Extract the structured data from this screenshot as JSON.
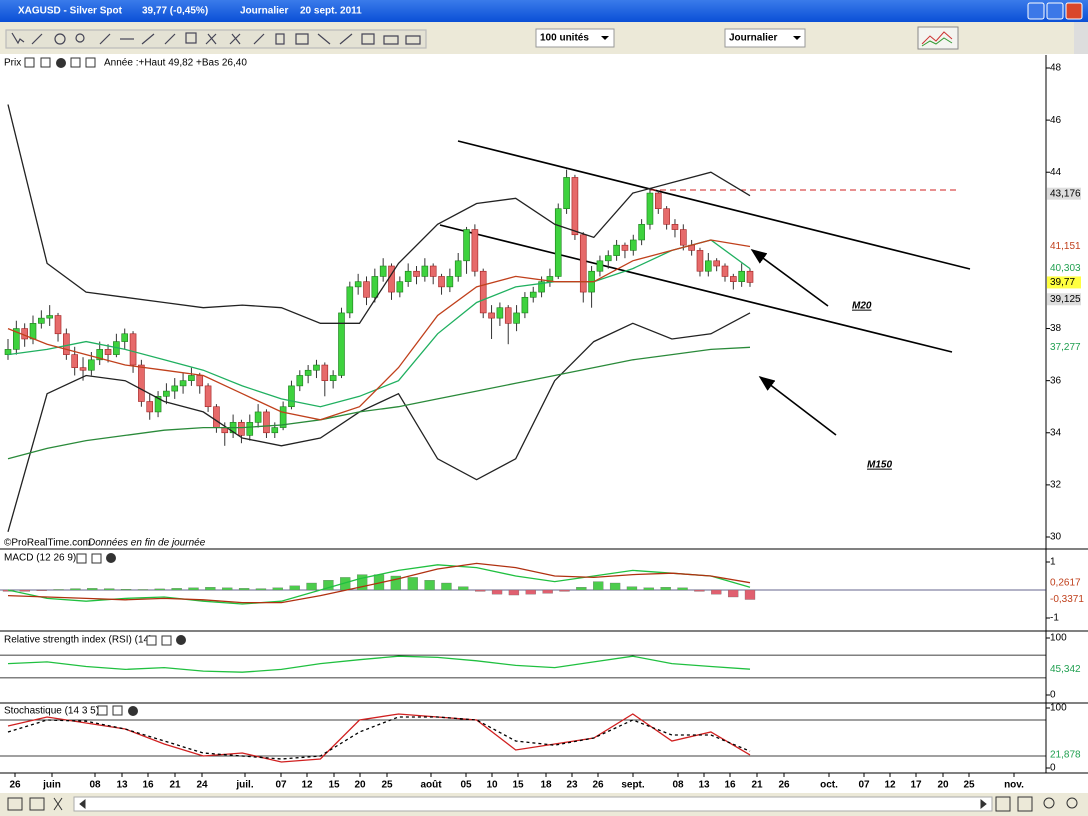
{
  "window": {
    "title": "XAGUSD - Silver Spot",
    "price": "39,77 (-0,45%)",
    "period": "Journalier",
    "date": "20 sept. 2011"
  },
  "toolbar": {
    "units": "100 unités",
    "period": "Journalier"
  },
  "price_panel": {
    "label": "Prix",
    "range_note": "Année :+Haut 49,82 +Bas 26,40",
    "copyright": "©ProRealTime.com",
    "note": "Données en fin de journée",
    "ylim": [
      30,
      48
    ],
    "yticks": [
      48,
      46,
      44,
      38,
      36,
      34,
      32,
      30
    ],
    "candles": [
      [
        37.0,
        37.6,
        36.8,
        37.2
      ],
      [
        37.2,
        38.3,
        37.0,
        38.0
      ],
      [
        38.0,
        38.2,
        37.3,
        37.6
      ],
      [
        37.6,
        38.5,
        37.4,
        38.2
      ],
      [
        38.2,
        38.7,
        38.0,
        38.4
      ],
      [
        38.4,
        38.9,
        38.1,
        38.5
      ],
      [
        38.5,
        38.6,
        37.5,
        37.8
      ],
      [
        37.8,
        38.0,
        36.8,
        37.0
      ],
      [
        37.0,
        37.3,
        36.2,
        36.5
      ],
      [
        36.5,
        36.9,
        36.0,
        36.4
      ],
      [
        36.4,
        37.1,
        36.2,
        36.8
      ],
      [
        36.8,
        37.5,
        36.6,
        37.2
      ],
      [
        37.2,
        37.4,
        36.7,
        37.0
      ],
      [
        37.0,
        37.8,
        36.9,
        37.5
      ],
      [
        37.5,
        38.0,
        37.2,
        37.8
      ],
      [
        37.8,
        37.9,
        36.3,
        36.6
      ],
      [
        36.6,
        36.8,
        35.0,
        35.2
      ],
      [
        35.2,
        35.5,
        34.5,
        34.8
      ],
      [
        34.8,
        35.6,
        34.6,
        35.4
      ],
      [
        35.4,
        35.9,
        35.1,
        35.6
      ],
      [
        35.6,
        36.1,
        35.3,
        35.8
      ],
      [
        35.8,
        36.3,
        35.5,
        36.0
      ],
      [
        36.0,
        36.5,
        35.8,
        36.2
      ],
      [
        36.2,
        36.3,
        35.5,
        35.8
      ],
      [
        35.8,
        35.9,
        34.8,
        35.0
      ],
      [
        35.0,
        35.1,
        34.0,
        34.2
      ],
      [
        34.2,
        34.4,
        33.5,
        34.0
      ],
      [
        34.0,
        34.7,
        33.8,
        34.4
      ],
      [
        34.4,
        34.5,
        33.6,
        33.9
      ],
      [
        33.9,
        34.7,
        33.7,
        34.4
      ],
      [
        34.4,
        35.1,
        34.2,
        34.8
      ],
      [
        34.8,
        34.9,
        33.8,
        34.0
      ],
      [
        34.0,
        34.4,
        33.8,
        34.2
      ],
      [
        34.2,
        35.2,
        34.1,
        35.0
      ],
      [
        35.0,
        36.0,
        34.9,
        35.8
      ],
      [
        35.8,
        36.4,
        35.6,
        36.2
      ],
      [
        36.2,
        36.6,
        35.9,
        36.4
      ],
      [
        36.4,
        36.8,
        36.1,
        36.6
      ],
      [
        36.6,
        36.7,
        35.4,
        36.0
      ],
      [
        36.0,
        36.4,
        35.7,
        36.2
      ],
      [
        36.2,
        38.8,
        36.1,
        38.6
      ],
      [
        38.6,
        39.8,
        38.4,
        39.6
      ],
      [
        39.6,
        40.1,
        39.3,
        39.8
      ],
      [
        39.8,
        40.0,
        38.9,
        39.2
      ],
      [
        39.2,
        40.3,
        39.0,
        40.0
      ],
      [
        40.0,
        40.7,
        39.8,
        40.4
      ],
      [
        40.4,
        40.5,
        39.1,
        39.4
      ],
      [
        39.4,
        40.0,
        39.2,
        39.8
      ],
      [
        39.8,
        40.5,
        39.6,
        40.2
      ],
      [
        40.2,
        40.4,
        39.7,
        40.0
      ],
      [
        40.0,
        40.7,
        39.8,
        40.4
      ],
      [
        40.4,
        40.5,
        39.7,
        40.0
      ],
      [
        40.0,
        40.1,
        39.3,
        39.6
      ],
      [
        39.6,
        40.3,
        39.4,
        40.0
      ],
      [
        40.0,
        40.9,
        39.8,
        40.6
      ],
      [
        40.6,
        41.9,
        40.1,
        41.8
      ],
      [
        41.8,
        42.0,
        40.0,
        40.2
      ],
      [
        40.2,
        40.3,
        38.4,
        38.6
      ],
      [
        38.6,
        38.9,
        37.6,
        38.4
      ],
      [
        38.4,
        39.0,
        38.1,
        38.8
      ],
      [
        38.8,
        38.9,
        37.4,
        38.2
      ],
      [
        38.2,
        38.9,
        37.9,
        38.6
      ],
      [
        38.6,
        39.4,
        38.4,
        39.2
      ],
      [
        39.2,
        39.6,
        39.0,
        39.4
      ],
      [
        39.4,
        40.0,
        39.2,
        39.8
      ],
      [
        39.8,
        40.3,
        39.6,
        40.0
      ],
      [
        40.0,
        42.8,
        39.9,
        42.6
      ],
      [
        42.6,
        44.1,
        42.4,
        43.8
      ],
      [
        43.8,
        43.9,
        41.4,
        41.6
      ],
      [
        41.6,
        41.7,
        39.0,
        39.4
      ],
      [
        39.4,
        40.4,
        38.8,
        40.2
      ],
      [
        40.2,
        40.8,
        40.0,
        40.6
      ],
      [
        40.6,
        41.0,
        40.3,
        40.8
      ],
      [
        40.8,
        41.4,
        40.6,
        41.2
      ],
      [
        41.2,
        41.3,
        40.7,
        41.0
      ],
      [
        41.0,
        41.6,
        40.8,
        41.4
      ],
      [
        41.4,
        42.2,
        41.2,
        42.0
      ],
      [
        42.0,
        43.4,
        41.8,
        43.2
      ],
      [
        43.2,
        43.3,
        42.4,
        42.6
      ],
      [
        42.6,
        42.7,
        41.8,
        42.0
      ],
      [
        42.0,
        42.2,
        41.5,
        41.8
      ],
      [
        41.8,
        42.0,
        41.0,
        41.2
      ],
      [
        41.2,
        41.4,
        40.8,
        41.0
      ],
      [
        41.0,
        41.1,
        40.0,
        40.2
      ],
      [
        40.2,
        40.9,
        40.0,
        40.6
      ],
      [
        40.6,
        40.7,
        40.2,
        40.4
      ],
      [
        40.4,
        40.5,
        39.8,
        40.0
      ],
      [
        40.0,
        40.1,
        39.5,
        39.8
      ],
      [
        39.8,
        40.5,
        39.6,
        40.2
      ],
      [
        40.2,
        40.3,
        39.6,
        39.77
      ]
    ],
    "lines": [
      {
        "color": "#222222",
        "values": [
          46.6,
          40.5,
          39.4,
          39.2,
          39.0,
          38.8,
          38.9,
          38.8,
          38.2,
          38.2,
          40.5,
          42.0,
          42.8,
          43.0,
          42.0,
          41.5,
          43.2,
          43.6,
          44.0,
          43.1
        ]
      },
      {
        "color": "#222222",
        "values": [
          30.2,
          35.5,
          36.2,
          36.0,
          35.2,
          34.8,
          33.8,
          33.5,
          33.8,
          34.8,
          35.5,
          33.0,
          32.2,
          33.0,
          36.0,
          37.5,
          38.2,
          37.6,
          37.8,
          38.6
        ]
      },
      {
        "color": "#2a8a3a",
        "values": [
          33.0,
          33.4,
          33.7,
          33.9,
          34.1,
          34.2,
          34.2,
          34.3,
          34.5,
          34.8,
          35.0,
          35.3,
          35.6,
          35.9,
          36.2,
          36.5,
          36.8,
          37.0,
          37.2,
          37.28
        ]
      },
      {
        "color": "#20b060",
        "values": [
          37.0,
          37.2,
          37.5,
          37.2,
          36.8,
          36.4,
          35.8,
          35.3,
          35.0,
          35.4,
          36.0,
          37.8,
          39.0,
          39.6,
          39.8,
          39.8,
          40.3,
          41.0,
          41.4,
          40.3
        ]
      },
      {
        "color": "#c0401c",
        "values": [
          38.0,
          37.4,
          37.0,
          36.6,
          36.4,
          36.2,
          35.5,
          34.8,
          34.5,
          35.0,
          36.5,
          38.5,
          39.6,
          40.0,
          39.8,
          39.8,
          40.6,
          41.0,
          41.4,
          41.15
        ]
      }
    ],
    "price_labels": [
      {
        "value": 43.176,
        "label": "43,176",
        "color": "#000000",
        "fill": "#dddddd"
      },
      {
        "value": 41.151,
        "label": "41,151",
        "color": "#c0401c",
        "fill": "#ffffff"
      },
      {
        "value": 40.303,
        "label": "40,303",
        "color": "#20a050",
        "fill": "#ffffff"
      },
      {
        "value": 39.77,
        "label": "39,77",
        "color": "#000000",
        "fill": "#ffff40"
      },
      {
        "value": 39.125,
        "label": "39,125",
        "color": "#000000",
        "fill": "#dddddd"
      },
      {
        "value": 37.277,
        "label": "37,277",
        "color": "#20a050",
        "fill": "#ffffff"
      }
    ],
    "annotations": [
      "M20",
      "M150"
    ]
  },
  "macd": {
    "label": "MACD (12 26 9)",
    "ylim": [
      -1,
      1
    ],
    "yticks": [
      1,
      -1
    ],
    "levels": [
      0
    ],
    "histogram": [
      -0.05,
      -0.05,
      -0.03,
      0.02,
      0.05,
      0.06,
      0.05,
      0.03,
      0.02,
      0.04,
      0.06,
      0.08,
      0.1,
      0.08,
      0.06,
      0.05,
      0.08,
      0.15,
      0.25,
      0.35,
      0.45,
      0.55,
      0.55,
      0.5,
      0.45,
      0.35,
      0.25,
      0.12,
      -0.05,
      -0.15,
      -0.18,
      -0.15,
      -0.12,
      -0.05,
      0.1,
      0.3,
      0.25,
      0.12,
      0.08,
      0.1,
      0.08,
      -0.05,
      -0.15,
      -0.25,
      -0.34
    ],
    "lines": [
      {
        "color": "#20c040",
        "values": [
          0.0,
          -0.3,
          -0.4,
          -0.3,
          -0.25,
          -0.4,
          -0.5,
          -0.4,
          0.0,
          0.4,
          0.7,
          0.9,
          0.8,
          0.5,
          0.3,
          0.5,
          0.7,
          0.6,
          0.5,
          0.1
        ]
      },
      {
        "color": "#b03010",
        "values": [
          -0.2,
          -0.25,
          -0.3,
          -0.35,
          -0.3,
          -0.35,
          -0.45,
          -0.45,
          -0.2,
          0.1,
          0.4,
          0.75,
          0.95,
          0.8,
          0.5,
          0.45,
          0.55,
          0.6,
          0.5,
          0.26
        ]
      }
    ],
    "value_labels": [
      {
        "value": 0.2617,
        "label": "0,2617",
        "color": "#c0401c"
      },
      {
        "value": -0.3371,
        "label": "-0,3371",
        "color": "#c0401c"
      }
    ]
  },
  "rsi": {
    "label": "Relative strength index (RSI) (14)",
    "ylim": [
      0,
      100
    ],
    "yticks": [
      100,
      0
    ],
    "levels": [
      70,
      30
    ],
    "lines": [
      {
        "color": "#20c040",
        "values": [
          55,
          58,
          50,
          45,
          48,
          42,
          40,
          45,
          55,
          62,
          68,
          66,
          60,
          52,
          48,
          58,
          68,
          55,
          50,
          45.342
        ]
      }
    ],
    "value_labels": [
      {
        "value": 45.342,
        "label": "45,342",
        "color": "#20a050"
      }
    ]
  },
  "stoch": {
    "label": "Stochastique (14 3 5)",
    "ylim": [
      0,
      100
    ],
    "yticks": [
      100,
      0
    ],
    "levels": [
      80,
      20
    ],
    "lines": [
      {
        "color": "#d02020",
        "values": [
          70,
          85,
          75,
          65,
          40,
          20,
          25,
          10,
          15,
          80,
          90,
          85,
          80,
          30,
          40,
          50,
          90,
          45,
          60,
          21.878
        ]
      },
      {
        "color": "#000000",
        "dash": true,
        "values": [
          60,
          80,
          78,
          65,
          45,
          25,
          20,
          15,
          20,
          60,
          85,
          85,
          80,
          45,
          38,
          50,
          80,
          55,
          55,
          28
        ]
      }
    ],
    "value_labels": [
      {
        "value": 21.878,
        "label": "21,878",
        "color": "#20a050"
      }
    ]
  },
  "dates": [
    "26",
    "juin",
    "08",
    "13",
    "16",
    "21",
    "24",
    "juil.",
    "07",
    "12",
    "15",
    "20",
    "25",
    "août",
    "05",
    "10",
    "15",
    "18",
    "23",
    "26",
    "sept.",
    "08",
    "13",
    "16",
    "21",
    "26",
    "oct.",
    "07",
    "12",
    "17",
    "20",
    "25",
    "nov."
  ]
}
